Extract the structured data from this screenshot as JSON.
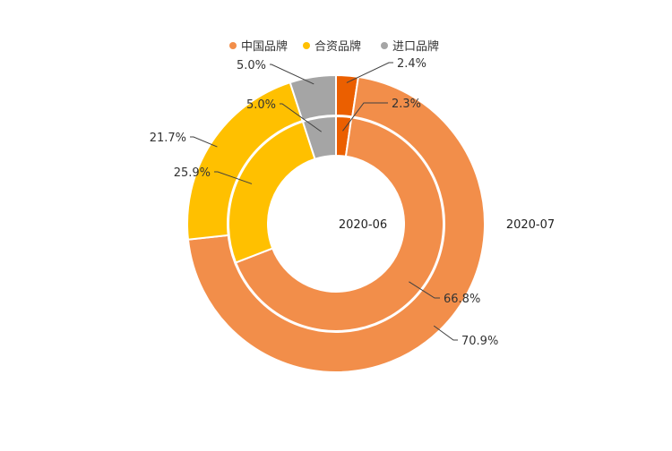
{
  "chart_data": {
    "type": "pie",
    "subtype": "nested-donut",
    "title": "",
    "legend": {
      "position": "top",
      "entries": [
        {
          "name": "中国品牌",
          "color": "#F28E4A"
        },
        {
          "name": "合资品牌",
          "color": "#FFC000"
        },
        {
          "name": "进口品牌",
          "color": "#A5A5A5"
        }
      ]
    },
    "categories": [
      "",
      "中国品牌",
      "合资品牌",
      "进口品牌"
    ],
    "series": [
      {
        "name": "2020-06",
        "ring": "inner",
        "values": [
          2.3,
          66.8,
          25.9,
          5.0
        ],
        "labels": [
          "2.3%",
          "66.8%",
          "25.9%",
          "5.0%"
        ]
      },
      {
        "name": "2020-07",
        "ring": "outer",
        "values": [
          2.4,
          70.9,
          21.7,
          5.0
        ],
        "labels": [
          "2.4%",
          "70.9%",
          "21.7%",
          "5.0%"
        ]
      }
    ],
    "slice_colors": [
      "#EB5F00",
      "#F28E4A",
      "#FFC000",
      "#A5A5A5"
    ]
  }
}
